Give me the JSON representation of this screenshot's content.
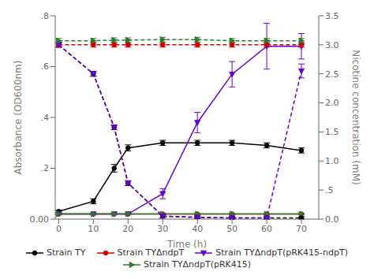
{
  "chart_data": {
    "type": "line",
    "x_label": "Time (h)",
    "y_label": "Absorbance (OD600nm)",
    "y2_label": "Nicotine concentration (mM)",
    "x": [
      0,
      10,
      16,
      20,
      30,
      40,
      50,
      60,
      70
    ],
    "xlim": [
      -1,
      75
    ],
    "xticks": [
      0,
      10,
      20,
      30,
      40,
      50,
      60,
      70
    ],
    "ylim": [
      0,
      0.8
    ],
    "yticks": [
      {
        "value": 0,
        "label": "0.00"
      },
      {
        "value": 0.2,
        "label": ".2"
      },
      {
        "value": 0.4,
        "label": ".4"
      },
      {
        "value": 0.6,
        "label": ".6"
      },
      {
        "value": 0.8,
        "label": ".8"
      }
    ],
    "y2lim": [
      0,
      3.5
    ],
    "y2ticks": [
      {
        "value": 0,
        "label": "0.0"
      },
      {
        "value": 0.5,
        "label": ".5"
      },
      {
        "value": 1,
        "label": "1.0"
      },
      1.5,
      {
        "value": 2,
        "label": "2.0"
      },
      2.5,
      {
        "value": 3,
        "label": "3.0"
      },
      3.5
    ],
    "legend": "bottom",
    "series": [
      {
        "name": "Strain TY",
        "color": "#000000",
        "marker": "circle",
        "line_style": "solid",
        "values": [
          0.03,
          0.07,
          0.2,
          0.28,
          0.3,
          0.3,
          0.3,
          0.29,
          0.27
        ],
        "errors": [
          0.005,
          0.01,
          0.015,
          0.012,
          0.01,
          0.01,
          0.01,
          0.01,
          0.01
        ]
      },
      {
        "name": "Strain TYΔndpT",
        "color": "#cc0000",
        "marker": "circle",
        "line_style": "solid",
        "values": [
          0.02,
          0.02,
          0.02,
          0.02,
          0.02,
          0.02,
          0.02,
          0.02,
          0.02
        ],
        "errors": [
          0.002,
          0.002,
          0.002,
          0.002,
          0.002,
          0.002,
          0.002,
          0.002,
          0.002
        ]
      },
      {
        "name": "Strain TYΔndpT(pRK415-ndpT)",
        "color": "#6600cc",
        "marker": "triangle-down",
        "line_style": "solid",
        "values": [
          0.02,
          0.02,
          0.02,
          0.02,
          0.1,
          0.38,
          0.57,
          0.68,
          0.68
        ],
        "errors": [
          0.003,
          0.003,
          0.003,
          0.003,
          0.02,
          0.04,
          0.05,
          0.09,
          0.05
        ]
      },
      {
        "name": "Strain TYΔndpT(pRK415)",
        "color": "#2d7a2d",
        "marker": "triangle-right",
        "line_style": "solid",
        "values": [
          0.02,
          0.02,
          0.02,
          0.02,
          0.02,
          0.02,
          0.02,
          0.02,
          0.02
        ],
        "errors": [
          0.002,
          0.002,
          0.002,
          0.002,
          0.002,
          0.002,
          0.002,
          0.002,
          0.002
        ]
      },
      {
        "name": "Strain TY",
        "color": "#000000",
        "marker": "circle",
        "line_style": "dashed",
        "axis": "y2",
        "values": [
          3.0,
          2.5,
          1.58,
          0.62,
          0.05,
          0.03,
          0.02,
          0.02,
          0.02
        ],
        "errors": [
          0.04,
          0.04,
          0.04,
          0.04,
          0.03,
          0.02,
          0.02,
          0.02,
          0.02
        ]
      },
      {
        "name": "Strain TYΔndpT",
        "color": "#cc0000",
        "marker": "circle",
        "line_style": "dashed",
        "axis": "y2",
        "values": [
          3.0,
          3.0,
          3.0,
          3.0,
          3.0,
          3.0,
          3.0,
          3.0,
          3.0
        ],
        "errors": [
          0.04,
          0.04,
          0.04,
          0.04,
          0.04,
          0.04,
          0.04,
          0.04,
          0.04
        ]
      },
      {
        "name": "Strain TYΔndpT(pRK415-ndpT)",
        "color": "#6600cc",
        "marker": "triangle-down",
        "line_style": "dashed",
        "axis": "y2",
        "values": [
          3.0,
          2.5,
          1.58,
          0.62,
          0.05,
          0.03,
          0.02,
          0.02,
          2.55
        ],
        "errors": [
          0.04,
          0.04,
          0.04,
          0.04,
          0.03,
          0.02,
          0.02,
          0.02,
          0.12
        ]
      },
      {
        "name": "Strain TYΔndpT(pRK415)",
        "color": "#2d7a2d",
        "marker": "triangle-right",
        "line_style": "dashed",
        "axis": "y2",
        "values": [
          3.07,
          3.07,
          3.08,
          3.08,
          3.09,
          3.09,
          3.07,
          3.07,
          3.07
        ],
        "errors": [
          0.04,
          0.04,
          0.04,
          0.04,
          0.04,
          0.04,
          0.04,
          0.04,
          0.04
        ]
      }
    ]
  }
}
